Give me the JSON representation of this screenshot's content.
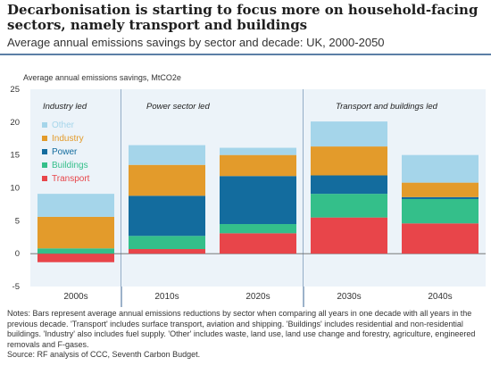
{
  "header": {
    "title": "Decarbonisation is starting to focus more on household-facing sectors, namely transport and buildings",
    "subtitle": "Average annual emissions savings by sector and decade: UK, 2000-2050"
  },
  "footer": {
    "notes": "Notes: Bars represent average annual emissions reductions by sector when comparing all years in one decade with all years in the previous decade. 'Transport' includes surface transport, aviation and shipping. 'Buildings' includes residential and non-residential buildings. 'Industry' also includes fuel supply. 'Other' includes waste, land use, land use change and forestry, agriculture, engineered removals and F-gases.",
    "source": "Source: RF analysis of CCC, Seventh Carbon Budget."
  },
  "chart_data": {
    "type": "bar",
    "stacked": true,
    "ylabel": "Average annual  emissions savings, MtCO2e",
    "ylim": [
      -5,
      25
    ],
    "yticks": [
      -5,
      0,
      5,
      10,
      15,
      20,
      25
    ],
    "grid": false,
    "categories": [
      "2000s",
      "2010s",
      "2020s",
      "2030s",
      "2040s"
    ],
    "series": [
      {
        "name": "Transport",
        "color": "#e8454a",
        "values": [
          -1.3,
          0.7,
          3.1,
          5.5,
          4.6
        ]
      },
      {
        "name": "Buildings",
        "color": "#34bf8a",
        "values": [
          0.8,
          2.0,
          1.4,
          3.6,
          3.7
        ]
      },
      {
        "name": "Power",
        "color": "#136c9e",
        "values": [
          0.0,
          6.1,
          7.3,
          2.8,
          0.3
        ]
      },
      {
        "name": "Industry",
        "color": "#e39b2b",
        "values": [
          4.8,
          4.7,
          3.2,
          4.4,
          2.2
        ]
      },
      {
        "name": "Other",
        "color": "#a5d5ea",
        "values": [
          3.5,
          3.0,
          1.1,
          3.8,
          4.2
        ]
      }
    ],
    "legend_order": [
      "Other",
      "Industry",
      "Power",
      "Buildings",
      "Transport"
    ],
    "legend_position": "top-left",
    "sections": [
      {
        "label": "Industry led"
      },
      {
        "label": "Power sector led"
      },
      {
        "label": "Transport and buildings led"
      }
    ]
  }
}
